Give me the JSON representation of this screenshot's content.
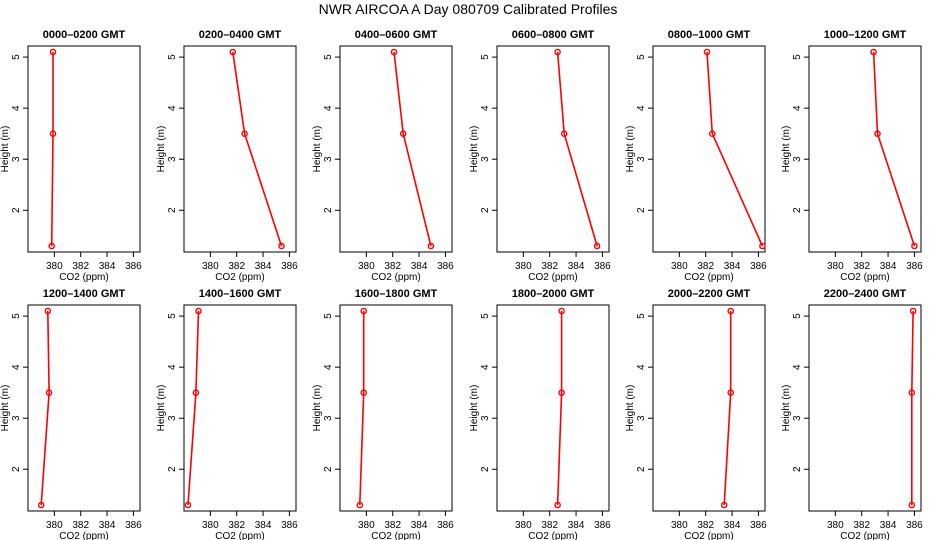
{
  "title": "NWR AIRCOA A  Day 080709  Calibrated Profiles",
  "colors": {
    "profile": "#ff0000",
    "axis": "#000000",
    "background": "#ffffff"
  },
  "chart_data": [
    {
      "type": "line",
      "title": "0000–0200 GMT",
      "xlabel": "CO2 (ppm)",
      "ylabel": "Height (m)",
      "xlim": [
        378.0,
        386.5
      ],
      "ylim": [
        1.3,
        5.1
      ],
      "xticks": [
        380,
        382,
        384,
        386
      ],
      "yticks": [
        2,
        3,
        4,
        5
      ],
      "x": [
        379.9,
        379.9,
        379.8
      ],
      "y": [
        5.1,
        3.5,
        1.3
      ]
    },
    {
      "type": "line",
      "title": "0200–0400 GMT",
      "xlabel": "CO2 (ppm)",
      "ylabel": "Height (m)",
      "xlim": [
        378.0,
        386.5
      ],
      "ylim": [
        1.3,
        5.1
      ],
      "xticks": [
        380,
        382,
        384,
        386
      ],
      "yticks": [
        2,
        3,
        4,
        5
      ],
      "x": [
        381.7,
        382.6,
        385.4
      ],
      "y": [
        5.1,
        3.5,
        1.3
      ]
    },
    {
      "type": "line",
      "title": "0400–0600 GMT",
      "xlabel": "CO2 (ppm)",
      "ylabel": "Height (m)",
      "xlim": [
        378.0,
        386.5
      ],
      "ylim": [
        1.3,
        5.1
      ],
      "xticks": [
        380,
        382,
        384,
        386
      ],
      "yticks": [
        2,
        3,
        4,
        5
      ],
      "x": [
        382.1,
        382.8,
        384.9
      ],
      "y": [
        5.1,
        3.5,
        1.3
      ]
    },
    {
      "type": "line",
      "title": "0600–0800 GMT",
      "xlabel": "CO2 (ppm)",
      "ylabel": "Height (m)",
      "xlim": [
        378.0,
        386.5
      ],
      "ylim": [
        1.3,
        5.1
      ],
      "xticks": [
        380,
        382,
        384,
        386
      ],
      "yticks": [
        2,
        3,
        4,
        5
      ],
      "x": [
        382.6,
        383.1,
        385.6
      ],
      "y": [
        5.1,
        3.5,
        1.3
      ]
    },
    {
      "type": "line",
      "title": "0800–1000 GMT",
      "xlabel": "CO2 (ppm)",
      "ylabel": "Height (m)",
      "xlim": [
        378.0,
        386.5
      ],
      "ylim": [
        1.3,
        5.1
      ],
      "xticks": [
        380,
        382,
        384,
        386
      ],
      "yticks": [
        2,
        3,
        4,
        5
      ],
      "x": [
        382.1,
        382.5,
        386.3
      ],
      "y": [
        5.1,
        3.5,
        1.3
      ]
    },
    {
      "type": "line",
      "title": "1000–1200 GMT",
      "xlabel": "CO2 (ppm)",
      "ylabel": "Height (m)",
      "xlim": [
        378.0,
        386.5
      ],
      "ylim": [
        1.3,
        5.1
      ],
      "xticks": [
        380,
        382,
        384,
        386
      ],
      "yticks": [
        2,
        3,
        4,
        5
      ],
      "x": [
        382.9,
        383.2,
        386.0
      ],
      "y": [
        5.1,
        3.5,
        1.3
      ]
    },
    {
      "type": "line",
      "title": "1200–1400 GMT",
      "xlabel": "CO2 (ppm)",
      "ylabel": "Height (m)",
      "xlim": [
        378.0,
        386.5
      ],
      "ylim": [
        1.3,
        5.1
      ],
      "xticks": [
        380,
        382,
        384,
        386
      ],
      "yticks": [
        2,
        3,
        4,
        5
      ],
      "x": [
        379.5,
        379.6,
        379.0
      ],
      "y": [
        5.1,
        3.5,
        1.3
      ]
    },
    {
      "type": "line",
      "title": "1400–1600 GMT",
      "xlabel": "CO2 (ppm)",
      "ylabel": "Height (m)",
      "xlim": [
        378.0,
        386.5
      ],
      "ylim": [
        1.3,
        5.1
      ],
      "xticks": [
        380,
        382,
        384,
        386
      ],
      "yticks": [
        2,
        3,
        4,
        5
      ],
      "x": [
        379.1,
        378.9,
        378.3
      ],
      "y": [
        5.1,
        3.5,
        1.3
      ]
    },
    {
      "type": "line",
      "title": "1600–1800 GMT",
      "xlabel": "CO2 (ppm)",
      "ylabel": "Height (m)",
      "xlim": [
        378.0,
        386.5
      ],
      "ylim": [
        1.3,
        5.1
      ],
      "xticks": [
        380,
        382,
        384,
        386
      ],
      "yticks": [
        2,
        3,
        4,
        5
      ],
      "x": [
        379.8,
        379.8,
        379.5
      ],
      "y": [
        5.1,
        3.5,
        1.3
      ]
    },
    {
      "type": "line",
      "title": "1800–2000 GMT",
      "xlabel": "CO2 (ppm)",
      "ylabel": "Height (m)",
      "xlim": [
        378.0,
        386.5
      ],
      "ylim": [
        1.3,
        5.1
      ],
      "xticks": [
        380,
        382,
        384,
        386
      ],
      "yticks": [
        2,
        3,
        4,
        5
      ],
      "x": [
        382.9,
        382.9,
        382.6
      ],
      "y": [
        5.1,
        3.5,
        1.3
      ]
    },
    {
      "type": "line",
      "title": "2000–2200 GMT",
      "xlabel": "CO2 (ppm)",
      "ylabel": "Height (m)",
      "xlim": [
        378.0,
        386.5
      ],
      "ylim": [
        1.3,
        5.1
      ],
      "xticks": [
        380,
        382,
        384,
        386
      ],
      "yticks": [
        2,
        3,
        4,
        5
      ],
      "x": [
        383.9,
        383.9,
        383.4
      ],
      "y": [
        5.1,
        3.5,
        1.3
      ]
    },
    {
      "type": "line",
      "title": "2200–2400 GMT",
      "xlabel": "CO2 (ppm)",
      "ylabel": "Height (m)",
      "xlim": [
        378.0,
        386.5
      ],
      "ylim": [
        1.3,
        5.1
      ],
      "xticks": [
        380,
        382,
        384,
        386
      ],
      "yticks": [
        2,
        3,
        4,
        5
      ],
      "x": [
        385.9,
        385.8,
        385.8
      ],
      "y": [
        5.1,
        3.5,
        1.3
      ]
    }
  ]
}
